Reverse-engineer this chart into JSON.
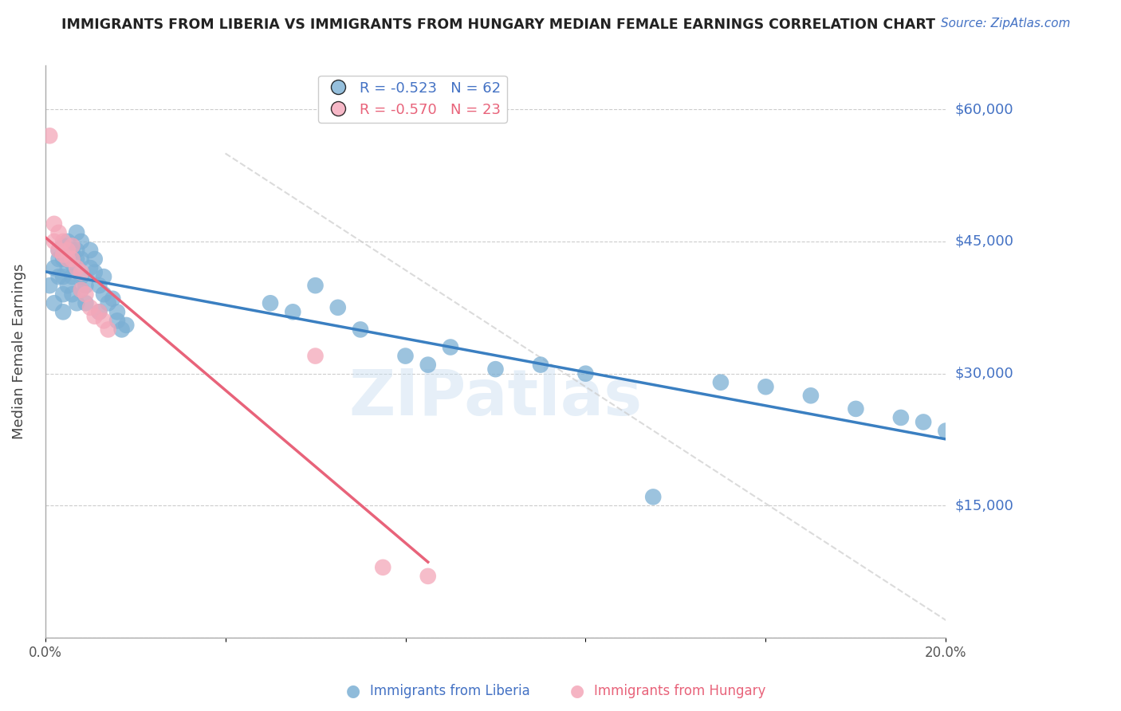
{
  "title": "IMMIGRANTS FROM LIBERIA VS IMMIGRANTS FROM HUNGARY MEDIAN FEMALE EARNINGS CORRELATION CHART",
  "source": "Source: ZipAtlas.com",
  "ylabel": "Median Female Earnings",
  "x_min": 0.0,
  "x_max": 0.2,
  "y_min": 0,
  "y_max": 65000,
  "yticks": [
    0,
    15000,
    30000,
    45000,
    60000
  ],
  "xticks": [
    0.0,
    0.04,
    0.08,
    0.12,
    0.16,
    0.2
  ],
  "xtick_labels": [
    "0.0%",
    "",
    "",
    "",
    "",
    "20.0%"
  ],
  "ytick_labels": [
    "",
    "$15,000",
    "$30,000",
    "$45,000",
    "$60,000"
  ],
  "liberia_color": "#7bafd4",
  "hungary_color": "#f4a7b9",
  "liberia_line_color": "#3a7fc1",
  "hungary_line_color": "#e8637a",
  "r_liberia": -0.523,
  "n_liberia": 62,
  "r_hungary": -0.57,
  "n_hungary": 23,
  "legend_label_liberia": "Immigrants from Liberia",
  "legend_label_hungary": "Immigrants from Hungary",
  "background_color": "#ffffff",
  "liberia_x": [
    0.001,
    0.002,
    0.002,
    0.003,
    0.003,
    0.003,
    0.004,
    0.004,
    0.004,
    0.004,
    0.004,
    0.005,
    0.005,
    0.005,
    0.005,
    0.006,
    0.006,
    0.006,
    0.006,
    0.007,
    0.007,
    0.007,
    0.007,
    0.008,
    0.008,
    0.008,
    0.008,
    0.009,
    0.009,
    0.01,
    0.01,
    0.011,
    0.011,
    0.012,
    0.012,
    0.013,
    0.013,
    0.014,
    0.015,
    0.016,
    0.016,
    0.017,
    0.018,
    0.05,
    0.055,
    0.06,
    0.065,
    0.07,
    0.08,
    0.085,
    0.09,
    0.1,
    0.11,
    0.12,
    0.135,
    0.15,
    0.16,
    0.17,
    0.18,
    0.19,
    0.195,
    0.2
  ],
  "liberia_y": [
    40000,
    38000,
    42000,
    43000,
    44000,
    41000,
    44500,
    43000,
    41000,
    39000,
    37000,
    45000,
    43500,
    42000,
    40000,
    44000,
    42500,
    41000,
    39000,
    46000,
    44000,
    43000,
    38000,
    45000,
    43000,
    41000,
    39500,
    40000,
    38000,
    44000,
    42000,
    43000,
    41500,
    40000,
    37000,
    41000,
    39000,
    38000,
    38500,
    37000,
    36000,
    35000,
    35500,
    38000,
    37000,
    40000,
    37500,
    35000,
    32000,
    31000,
    33000,
    30500,
    31000,
    30000,
    16000,
    29000,
    28500,
    27500,
    26000,
    25000,
    24500,
    23500
  ],
  "hungary_x": [
    0.001,
    0.002,
    0.002,
    0.003,
    0.003,
    0.004,
    0.004,
    0.005,
    0.005,
    0.006,
    0.006,
    0.007,
    0.008,
    0.008,
    0.009,
    0.01,
    0.011,
    0.012,
    0.013,
    0.014,
    0.06,
    0.075,
    0.085
  ],
  "hungary_y": [
    57000,
    47000,
    45000,
    46000,
    44000,
    45000,
    43500,
    44000,
    43000,
    44500,
    43000,
    42000,
    41500,
    39500,
    39000,
    37500,
    36500,
    37000,
    36000,
    35000,
    32000,
    8000,
    7000
  ]
}
